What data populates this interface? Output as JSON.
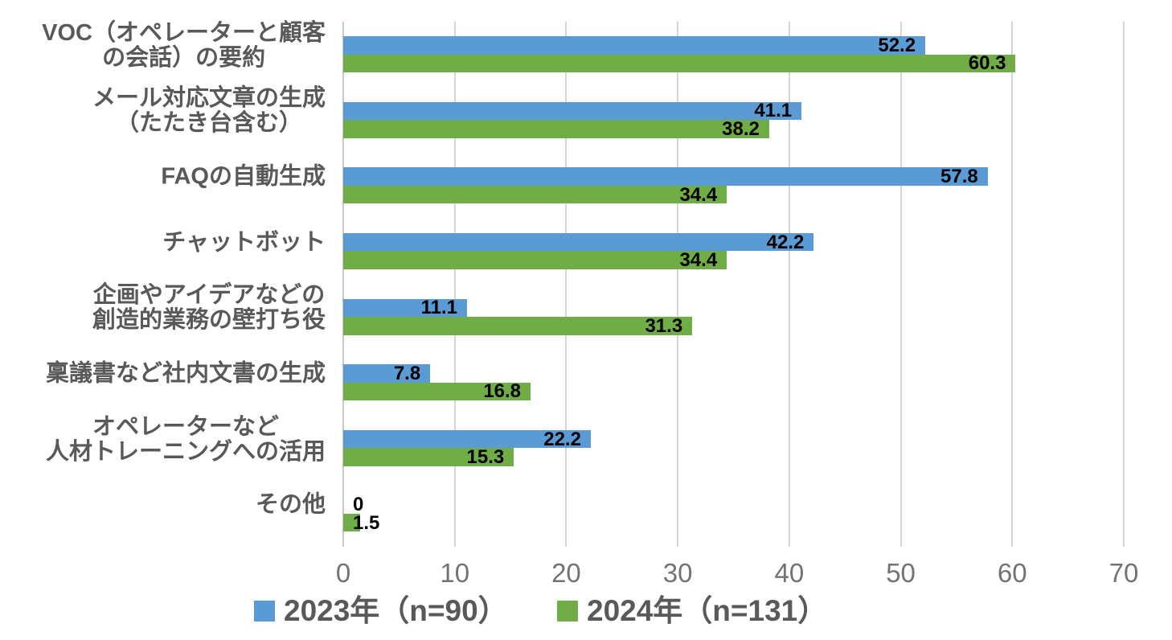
{
  "chart_data": {
    "type": "bar",
    "orientation": "horizontal",
    "title": "",
    "xlabel": "",
    "ylabel": "",
    "xlim": [
      0,
      70
    ],
    "x_ticks": [
      "0",
      "10",
      "20",
      "30",
      "40",
      "50",
      "60",
      "70"
    ],
    "grid": true,
    "legend_position": "bottom",
    "categories": [
      [
        "VOC（オペレーターと顧客",
        "の会話）の要約"
      ],
      [
        "メール対応文章の生成",
        "（たたき台含む）"
      ],
      [
        "FAQの自動生成"
      ],
      [
        "チャットボット"
      ],
      [
        "企画やアイデアなどの",
        "創造的業務の壁打ち役"
      ],
      [
        "稟議書など社内文書の生成"
      ],
      [
        "オペレーターなど",
        "人材トレーニングへの活用"
      ],
      [
        "その他"
      ]
    ],
    "series": [
      {
        "name": "2023年（n=90）",
        "color": "#5B9BD5",
        "values": [
          52.2,
          41.1,
          57.8,
          42.2,
          11.1,
          7.8,
          22.2,
          0
        ]
      },
      {
        "name": "2024年（n=131）",
        "color": "#70AD47",
        "values": [
          60.3,
          38.2,
          34.4,
          34.4,
          31.3,
          16.8,
          15.3,
          1.5
        ]
      }
    ],
    "value_labels_shown": true
  },
  "colors": {
    "grid": "#D6D6D6",
    "category_text": "#595959",
    "tick_text": "#737373",
    "value_text": "#000000"
  }
}
